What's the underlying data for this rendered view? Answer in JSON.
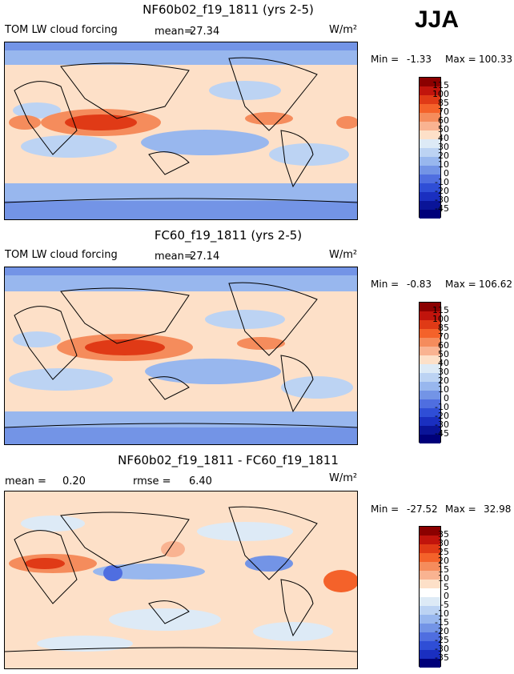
{
  "header": {
    "season": "JJA"
  },
  "panels": [
    {
      "title": "NF60b02_f19_1811 (yrs 2-5)",
      "left_label": "TOM LW cloud forcing",
      "stat1_label": "mean=",
      "stat1_value": "27.34",
      "units": "W/m²",
      "min_label": "Min =",
      "min_value": "-1.33",
      "max_label": "Max =",
      "max_value": "100.33"
    },
    {
      "title": "FC60_f19_1811 (yrs 2-5)",
      "left_label": "TOM LW cloud forcing",
      "stat1_label": "mean=",
      "stat1_value": "27.14",
      "units": "W/m²",
      "min_label": "Min =",
      "min_value": "-0.83",
      "max_label": "Max =",
      "max_value": "106.62"
    },
    {
      "title": "NF60b02_f19_1811 - FC60_f19_1811",
      "left_label": "",
      "stat1_label": "mean =",
      "stat1_value": "0.20",
      "stat2_label": "rmse =",
      "stat2_value": "6.40",
      "units": "W/m²",
      "min_label": "Min =",
      "min_value": "-27.52",
      "max_label": "Max =",
      "max_value": "32.98"
    }
  ],
  "chart_data": [
    {
      "type": "heatmap",
      "title": "NF60b02_f19_1811 (yrs 2-5)",
      "variable": "TOM LW cloud forcing",
      "units": "W/m²",
      "mean": 27.34,
      "min": -1.33,
      "max": 100.33,
      "colorbar_levels": [
        "115",
        "100",
        "85",
        "70",
        "60",
        "50",
        "40",
        "30",
        "20",
        "10",
        "0",
        "-10",
        "-20",
        "-30",
        "-45"
      ],
      "colorbar_colors": [
        "#8b0000",
        "#c1140c",
        "#e03a16",
        "#f4622a",
        "#f58c5c",
        "#f9b391",
        "#fde0c8",
        "#ddeaf6",
        "#bcd3f3",
        "#98b7ee",
        "#7394e6",
        "#4f6ee0",
        "#2f4ed6",
        "#1a2fc0",
        "#0a1498",
        "#00007a"
      ]
    },
    {
      "type": "heatmap",
      "title": "FC60_f19_1811 (yrs 2-5)",
      "variable": "TOM LW cloud forcing",
      "units": "W/m²",
      "mean": 27.14,
      "min": -0.83,
      "max": 106.62,
      "colorbar_levels": [
        "115",
        "100",
        "85",
        "70",
        "60",
        "50",
        "40",
        "30",
        "20",
        "10",
        "0",
        "-10",
        "-20",
        "-30",
        "-45"
      ],
      "colorbar_colors": [
        "#8b0000",
        "#c1140c",
        "#e03a16",
        "#f4622a",
        "#f58c5c",
        "#f9b391",
        "#fde0c8",
        "#ddeaf6",
        "#bcd3f3",
        "#98b7ee",
        "#7394e6",
        "#4f6ee0",
        "#2f4ed6",
        "#1a2fc0",
        "#0a1498",
        "#00007a"
      ]
    },
    {
      "type": "heatmap",
      "title": "NF60b02_f19_1811 - FC60_f19_1811",
      "units": "W/m²",
      "mean": 0.2,
      "rmse": 6.4,
      "min": -27.52,
      "max": 32.98,
      "colorbar_levels": [
        "35",
        "30",
        "25",
        "20",
        "15",
        "10",
        "5",
        "0",
        "-5",
        "-10",
        "-15",
        "-20",
        "-25",
        "-30",
        "-35"
      ],
      "colorbar_colors": [
        "#8b0000",
        "#c1140c",
        "#e03a16",
        "#f4622a",
        "#f58c5c",
        "#f9b391",
        "#fde0c8",
        "#ffffff",
        "#ddeaf6",
        "#bcd3f3",
        "#98b7ee",
        "#7394e6",
        "#4f6ee0",
        "#2f4ed6",
        "#1a2fc0",
        "#00007a"
      ]
    }
  ]
}
